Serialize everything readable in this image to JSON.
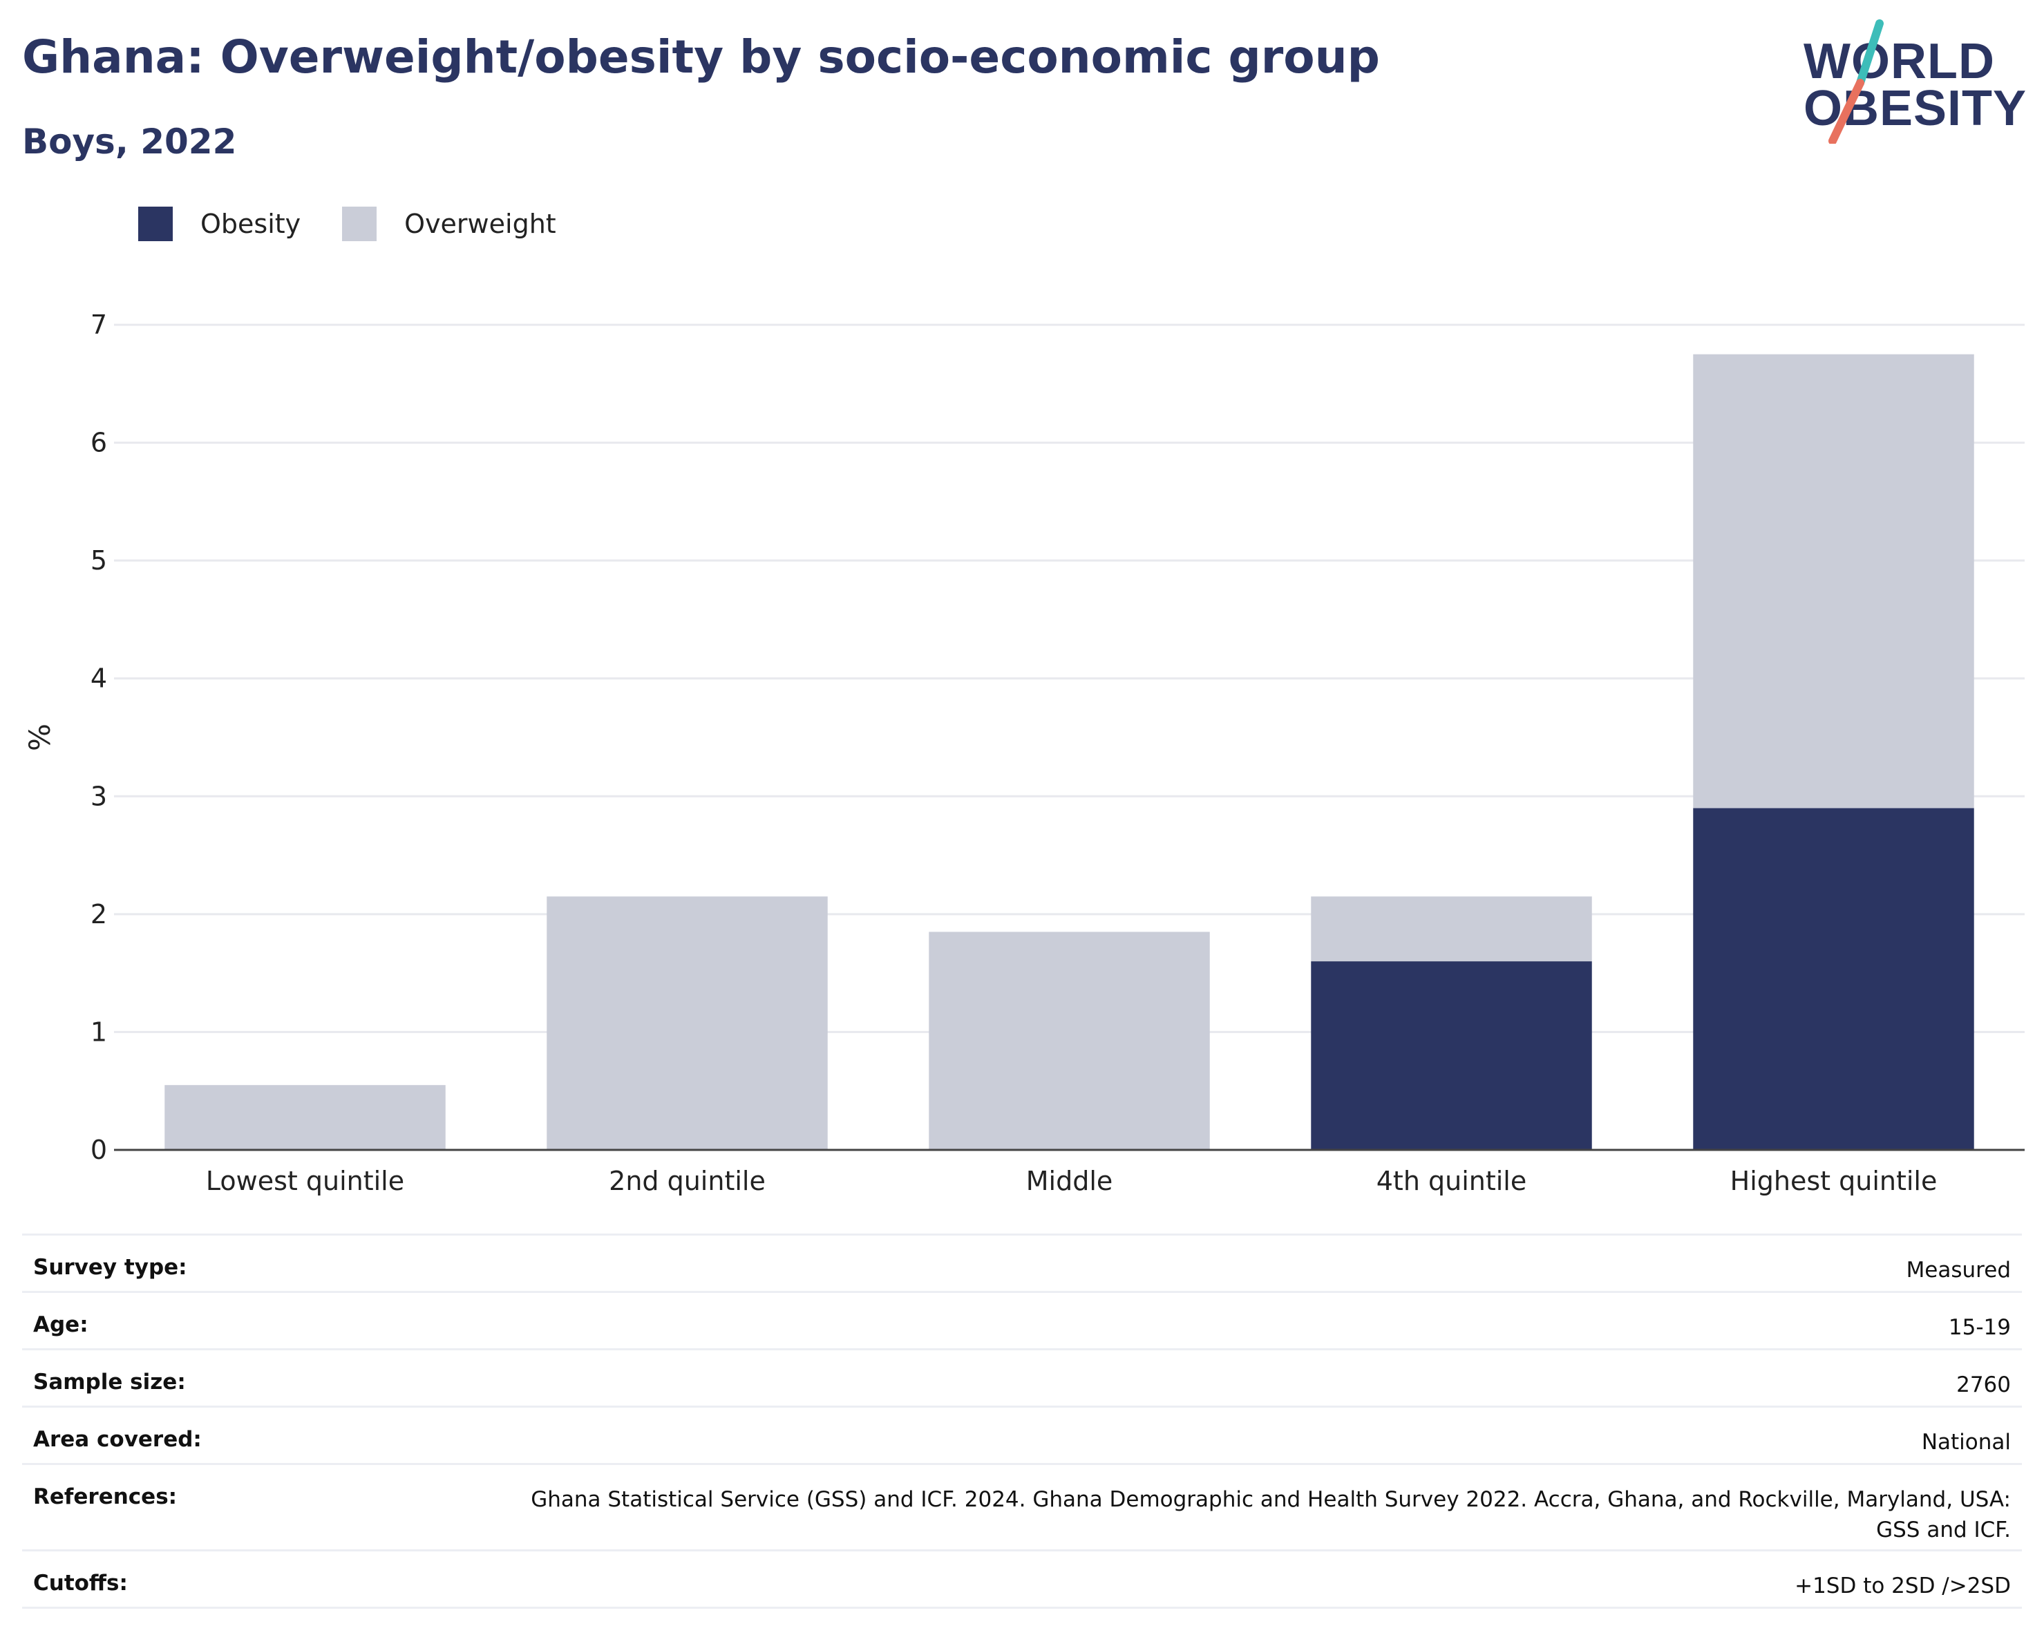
{
  "header": {
    "title": "Ghana: Overweight/obesity by socio-economic group",
    "subtitle": "Boys, 2022"
  },
  "logo": {
    "line1": "WORLD",
    "line2": "OBESITY",
    "accent_teal": "#3dbdb9",
    "accent_red": "#e8715e"
  },
  "legend": [
    {
      "name": "Obesity",
      "color": "#2b3562"
    },
    {
      "name": "Overweight",
      "color": "#cacdd8"
    }
  ],
  "chart_data": {
    "type": "bar",
    "stacked": true,
    "categories": [
      "Lowest quintile",
      "2nd quintile",
      "Middle",
      "4th quintile",
      "Highest quintile"
    ],
    "series": [
      {
        "name": "Obesity",
        "color": "#2b3562",
        "values": [
          0,
          0,
          0,
          1.6,
          2.9
        ]
      },
      {
        "name": "Overweight",
        "color": "#cacdd8",
        "values": [
          0.55,
          2.15,
          1.85,
          0.55,
          3.85
        ]
      }
    ],
    "ylabel": "%",
    "ylim": [
      0,
      7
    ],
    "yticks": [
      0,
      1,
      2,
      3,
      4,
      5,
      6,
      7
    ],
    "grid": true,
    "legend_position": "top-left"
  },
  "metadata": [
    {
      "label": "Survey type:",
      "value": "Measured"
    },
    {
      "label": "Age:",
      "value": "15-19"
    },
    {
      "label": "Sample size:",
      "value": "2760"
    },
    {
      "label": "Area covered:",
      "value": "National"
    },
    {
      "label": "References:",
      "value": "Ghana Statistical Service (GSS) and ICF. 2024. Ghana Demographic and Health Survey 2022. Accra, Ghana, and Rockville, Maryland, USA: GSS and ICF."
    },
    {
      "label": "Cutoffs:",
      "value": "+1SD to 2SD />2SD"
    }
  ]
}
